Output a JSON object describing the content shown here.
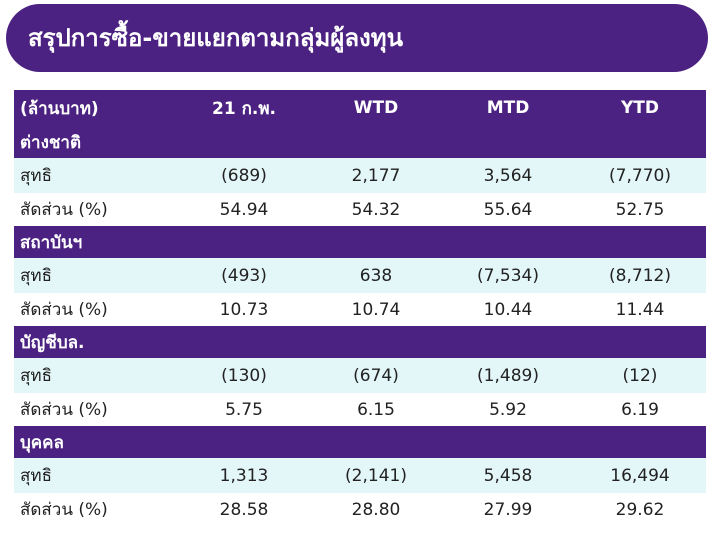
{
  "title": "สรุปการซื้อ-ขายแยกตามกลุ่มผู้ลงทุน",
  "header": {
    "unit": "(ล้านบาท)",
    "col1": "21 ก.พ.",
    "col2": "WTD",
    "col3": "MTD",
    "col4": "YTD"
  },
  "groups": [
    {
      "name": "ต่างชาติ",
      "net": {
        "label": "สุทธิ",
        "v1": "(689)",
        "v2": "2,177",
        "v3": "3,564",
        "v4": "(7,770)"
      },
      "share": {
        "label": "สัดส่วน (%)",
        "v1": "54.94",
        "v2": "54.32",
        "v3": "55.64",
        "v4": "52.75"
      }
    },
    {
      "name": "สถาบันฯ",
      "net": {
        "label": "สุทธิ",
        "v1": "(493)",
        "v2": "638",
        "v3": "(7,534)",
        "v4": "(8,712)"
      },
      "share": {
        "label": "สัดส่วน (%)",
        "v1": "10.73",
        "v2": "10.74",
        "v3": "10.44",
        "v4": "11.44"
      }
    },
    {
      "name": "บัญชีบล.",
      "net": {
        "label": "สุทธิ",
        "v1": "(130)",
        "v2": "(674)",
        "v3": "(1,489)",
        "v4": "(12)"
      },
      "share": {
        "label": "สัดส่วน (%)",
        "v1": "5.75",
        "v2": "6.15",
        "v3": "5.92",
        "v4": "6.19"
      }
    },
    {
      "name": "บุคคล",
      "net": {
        "label": "สุทธิ",
        "v1": "1,313",
        "v2": "(2,141)",
        "v3": "5,458",
        "v4": "16,494"
      },
      "share": {
        "label": "สัดส่วน (%)",
        "v1": "28.58",
        "v2": "28.80",
        "v3": "27.99",
        "v4": "29.62"
      }
    }
  ]
}
